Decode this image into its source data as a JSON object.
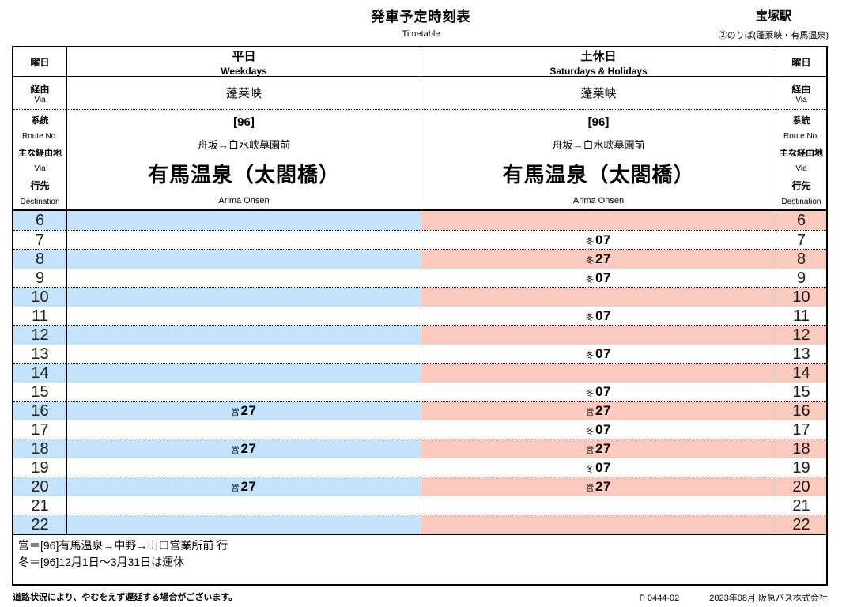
{
  "page": {
    "title": "発車予定時刻表",
    "title_en": "Timetable",
    "station": "宝塚駅",
    "platform": "②のりば(蓬莱峡・有馬温泉)"
  },
  "labels": {
    "day": "曜日",
    "via": "経由",
    "via_en": "Via",
    "route": "系統",
    "route_en": "Route No.",
    "main_via": "主な経由地",
    "main_via_en": "Via",
    "dest": "行先",
    "dest_en": "Destination"
  },
  "columns": {
    "weekday": {
      "label": "平日",
      "label_en": "Weekdays",
      "via": "蓬莱峡",
      "route_no": "[96]",
      "main_via": "舟坂→白水峡墓園前",
      "dest": "有馬温泉（太閤橋）",
      "dest_en": "Arima Onsen",
      "stripe_color": "#c3e3fa"
    },
    "holiday": {
      "label": "土休日",
      "label_en": "Saturdays & Holidays",
      "via": "蓬莱峡",
      "route_no": "[96]",
      "main_via": "舟坂→白水峡墓園前",
      "dest": "有馬温泉（太閤橋）",
      "dest_en": "Arima Onsen",
      "stripe_color": "#fbcabe"
    }
  },
  "timetable": {
    "hours": [
      {
        "hour": "6",
        "weekday": [],
        "holiday": []
      },
      {
        "hour": "7",
        "weekday": [],
        "holiday": [
          {
            "mark": "冬",
            "min": "07"
          }
        ]
      },
      {
        "hour": "8",
        "weekday": [],
        "holiday": [
          {
            "mark": "冬",
            "min": "27"
          }
        ]
      },
      {
        "hour": "9",
        "weekday": [],
        "holiday": [
          {
            "mark": "冬",
            "min": "07"
          }
        ]
      },
      {
        "hour": "10",
        "weekday": [],
        "holiday": []
      },
      {
        "hour": "11",
        "weekday": [],
        "holiday": [
          {
            "mark": "冬",
            "min": "07"
          }
        ]
      },
      {
        "hour": "12",
        "weekday": [],
        "holiday": []
      },
      {
        "hour": "13",
        "weekday": [],
        "holiday": [
          {
            "mark": "冬",
            "min": "07"
          }
        ]
      },
      {
        "hour": "14",
        "weekday": [],
        "holiday": []
      },
      {
        "hour": "15",
        "weekday": [],
        "holiday": [
          {
            "mark": "冬",
            "min": "07"
          }
        ]
      },
      {
        "hour": "16",
        "weekday": [
          {
            "mark": "営",
            "min": "27"
          }
        ],
        "holiday": [
          {
            "mark": "営",
            "min": "27"
          }
        ]
      },
      {
        "hour": "17",
        "weekday": [],
        "holiday": [
          {
            "mark": "冬",
            "min": "07"
          }
        ]
      },
      {
        "hour": "18",
        "weekday": [
          {
            "mark": "営",
            "min": "27"
          }
        ],
        "holiday": [
          {
            "mark": "営",
            "min": "27"
          }
        ]
      },
      {
        "hour": "19",
        "weekday": [],
        "holiday": [
          {
            "mark": "冬",
            "min": "07"
          }
        ]
      },
      {
        "hour": "20",
        "weekday": [
          {
            "mark": "営",
            "min": "27"
          }
        ],
        "holiday": [
          {
            "mark": "営",
            "min": "27"
          }
        ]
      },
      {
        "hour": "21",
        "weekday": [],
        "holiday": []
      },
      {
        "hour": "22",
        "weekday": [],
        "holiday": []
      }
    ]
  },
  "notes": [
    "営＝[96]有馬温泉→中野→山口営業所前 行",
    "冬＝[96]12月1日～3月31日は運休"
  ],
  "footer": {
    "left": "道路状況により、やむをえず遅延する場合がございます。",
    "code": "P 0444-02",
    "right": "2023年08月 阪急バス株式会社"
  }
}
